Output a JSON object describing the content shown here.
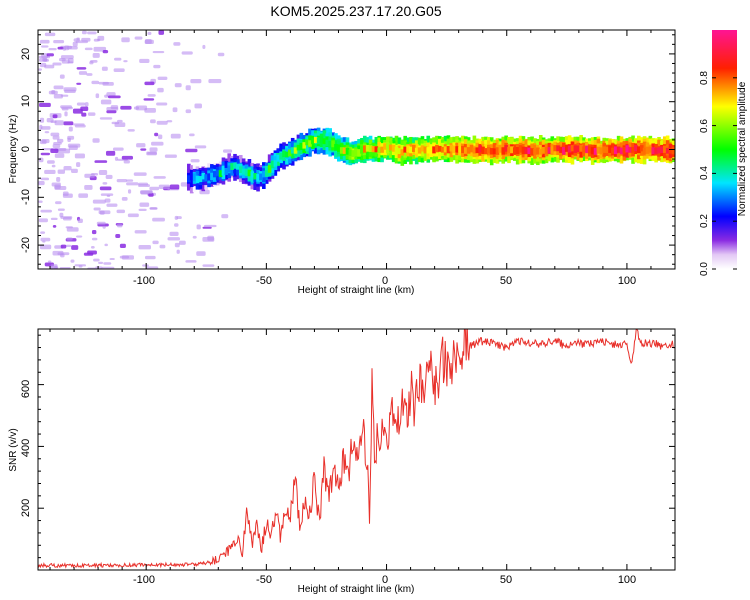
{
  "title": "KOM5.2025.237.17.20.G05",
  "colors": {
    "signal_line": "#e8302a",
    "axis": "#000000",
    "noise": "#b98ff0"
  },
  "chart_data": [
    {
      "type": "heatmap",
      "name": "spectrogram",
      "xlabel": "Height of straight line (km)",
      "ylabel": "Frequency (Hz)",
      "xlim": [
        -145,
        120
      ],
      "ylim": [
        -25,
        25
      ],
      "x_ticks": [
        -100,
        -50,
        0,
        50,
        100
      ],
      "y_ticks": [
        -20,
        -10,
        0,
        10,
        20
      ],
      "x_tick_labels": [
        "-100",
        "-50",
        "0",
        "50",
        "100"
      ],
      "y_tick_labels": [
        "-20",
        "-10",
        "0",
        "10",
        "20"
      ],
      "colorbar": {
        "label": "Normalized spectral amplitude",
        "range": [
          0,
          1
        ],
        "ticks": [
          0.0,
          0.2,
          0.4,
          0.6,
          0.8
        ],
        "tick_labels": [
          "0.0",
          "0.2",
          "0.4",
          "0.6",
          "0.8"
        ],
        "stops": [
          {
            "v": 0.0,
            "c": "#ffffff"
          },
          {
            "v": 0.06,
            "c": "#e3c8f5"
          },
          {
            "v": 0.12,
            "c": "#8a2be2"
          },
          {
            "v": 0.22,
            "c": "#0000ff"
          },
          {
            "v": 0.36,
            "c": "#00e5ff"
          },
          {
            "v": 0.5,
            "c": "#00ff00"
          },
          {
            "v": 0.68,
            "c": "#ffff00"
          },
          {
            "v": 0.84,
            "c": "#ff2000"
          },
          {
            "v": 1.0,
            "c": "#ff1493"
          }
        ]
      },
      "ridge": {
        "x": [
          -83,
          -78,
          -70,
          -64,
          -58,
          -54,
          -50,
          -45,
          -40,
          -35,
          -30,
          -25,
          -20,
          -15,
          -10,
          -5,
          0,
          5,
          10,
          20,
          30,
          40,
          50,
          60,
          70,
          80,
          90,
          100,
          110,
          120
        ],
        "freq": [
          -6,
          -6,
          -5,
          -3.5,
          -5,
          -6,
          -4.5,
          -1.5,
          -0.5,
          1,
          2,
          1.5,
          0,
          -1,
          0,
          0,
          0.5,
          -0.5,
          0,
          0,
          0,
          -0.2,
          0,
          -0.3,
          0,
          0,
          -0.2,
          0,
          0,
          -0.3
        ],
        "amplitude": [
          0.3,
          0.3,
          0.32,
          0.35,
          0.38,
          0.36,
          0.38,
          0.42,
          0.45,
          0.48,
          0.5,
          0.52,
          0.56,
          0.6,
          0.62,
          0.66,
          0.7,
          0.72,
          0.72,
          0.75,
          0.78,
          0.8,
          0.8,
          0.82,
          0.82,
          0.82,
          0.84,
          0.85,
          0.85,
          0.85
        ]
      }
    },
    {
      "type": "line",
      "name": "snr",
      "xlabel": "Height of straight line (km)",
      "ylabel": "SNR (v/v)",
      "xlim": [
        -145,
        120
      ],
      "ylim": [
        0,
        780
      ],
      "x_ticks": [
        -100,
        -50,
        0,
        50,
        100
      ],
      "y_ticks": [
        200,
        400,
        600
      ],
      "x_tick_labels": [
        "-100",
        "-50",
        "0",
        "50",
        "100"
      ],
      "y_tick_labels": [
        "200",
        "400",
        "600"
      ],
      "series": [
        {
          "name": "SNR",
          "x": [
            -145,
            -120,
            -100,
            -80,
            -75,
            -70,
            -66,
            -62,
            -60,
            -58,
            -56,
            -54,
            -52,
            -50,
            -48,
            -46,
            -44,
            -42,
            -40,
            -38,
            -36,
            -34,
            -32,
            -30,
            -28,
            -26,
            -24,
            -22,
            -20,
            -18,
            -16,
            -14,
            -12,
            -10,
            -8,
            -7,
            -6,
            -5,
            -4,
            -2,
            0,
            2,
            4,
            6,
            8,
            10,
            12,
            14,
            16,
            18,
            20,
            22,
            24,
            26,
            28,
            30,
            33,
            36,
            40,
            45,
            50,
            55,
            60,
            65,
            70,
            75,
            80,
            85,
            90,
            95,
            100,
            102,
            104,
            106,
            110,
            115,
            120
          ],
          "y": [
            15,
            15,
            16,
            18,
            22,
            35,
            60,
            110,
            50,
            205,
            85,
            140,
            70,
            160,
            110,
            200,
            95,
            210,
            170,
            300,
            120,
            230,
            180,
            290,
            150,
            320,
            230,
            330,
            270,
            365,
            300,
            440,
            330,
            450,
            360,
            130,
            640,
            310,
            420,
            470,
            410,
            510,
            430,
            540,
            490,
            580,
            520,
            610,
            570,
            660,
            590,
            640,
            690,
            620,
            700,
            680,
            720,
            730,
            740,
            735,
            720,
            740,
            730,
            735,
            740,
            725,
            735,
            730,
            740,
            730,
            735,
            660,
            780,
            730,
            735,
            725,
            730
          ]
        }
      ]
    }
  ]
}
